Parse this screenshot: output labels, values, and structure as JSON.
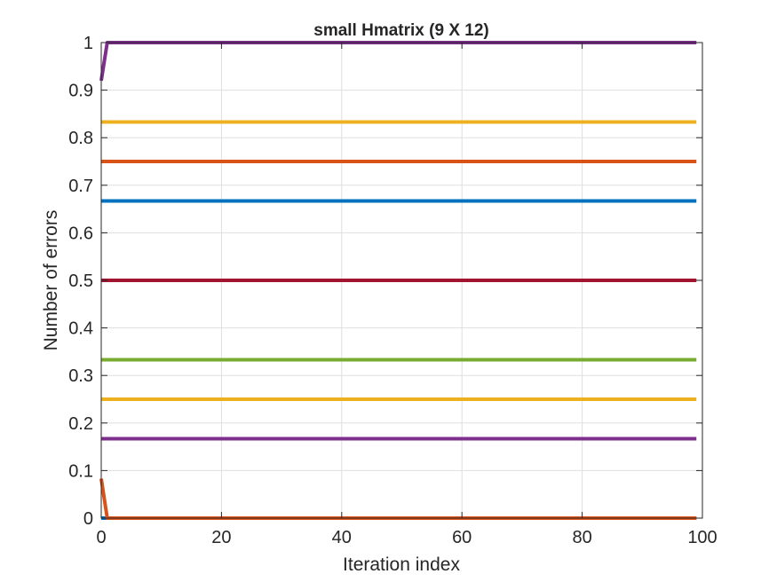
{
  "chart_data": {
    "type": "line",
    "title": "small Hmatrix (9 X 12)",
    "xlabel": "Iteration index",
    "ylabel": "Number of errors",
    "xlim": [
      0,
      100
    ],
    "ylim": [
      0,
      1
    ],
    "xticks": [
      0,
      20,
      40,
      60,
      80,
      100
    ],
    "yticks": [
      0,
      0.1,
      0.2,
      0.3,
      0.4,
      0.5,
      0.6,
      0.7,
      0.8,
      0.9,
      1
    ],
    "xtick_labels": [
      "0",
      "20",
      "40",
      "60",
      "80",
      "100"
    ],
    "ytick_labels": [
      "0",
      "0.1",
      "0.2",
      "0.3",
      "0.4",
      "0.5",
      "0.6",
      "0.7",
      "0.8",
      "0.9",
      "1"
    ],
    "grid": true,
    "x_end": 99,
    "series": [
      {
        "color": "#0072BD",
        "points": [
          [
            0,
            0
          ],
          [
            99,
            0
          ]
        ]
      },
      {
        "color": "#D95319",
        "points": [
          [
            0,
            0.083
          ],
          [
            1,
            0
          ],
          [
            99,
            0
          ]
        ]
      },
      {
        "color": "#7E2F8E",
        "points": [
          [
            0,
            0.167
          ],
          [
            99,
            0.167
          ]
        ]
      },
      {
        "color": "#EDB120",
        "points": [
          [
            0,
            0.25
          ],
          [
            99,
            0.25
          ]
        ]
      },
      {
        "color": "#77AC30",
        "points": [
          [
            0,
            0.333
          ],
          [
            99,
            0.333
          ]
        ]
      },
      {
        "color": "#A2142F",
        "points": [
          [
            0,
            0.5
          ],
          [
            99,
            0.5
          ]
        ]
      },
      {
        "color": "#0072BD",
        "points": [
          [
            0,
            0.667
          ],
          [
            99,
            0.667
          ]
        ]
      },
      {
        "color": "#D95319",
        "points": [
          [
            0,
            0.75
          ],
          [
            99,
            0.75
          ]
        ]
      },
      {
        "color": "#EDB120",
        "points": [
          [
            0,
            0.833
          ],
          [
            99,
            0.833
          ]
        ]
      },
      {
        "color": "#7E2F8E",
        "points": [
          [
            0,
            0.92
          ],
          [
            1,
            1
          ],
          [
            99,
            1
          ]
        ]
      }
    ]
  }
}
